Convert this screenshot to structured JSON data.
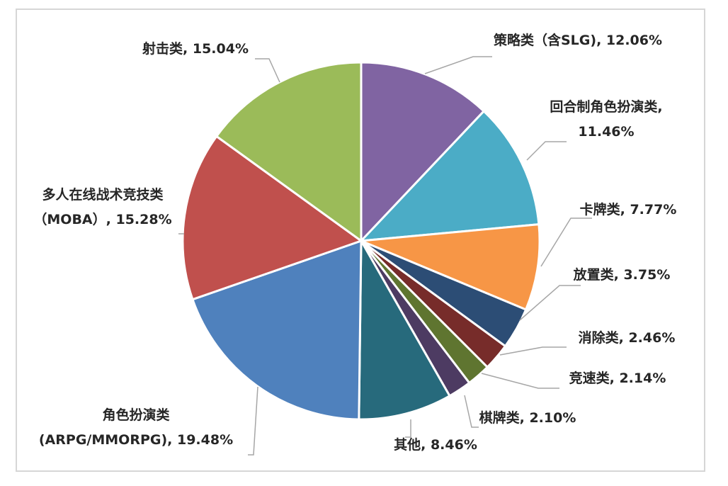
{
  "chart_data": {
    "type": "pie",
    "title": "",
    "slices": [
      {
        "label": "策略类（含SLG)",
        "value": 12.06,
        "value_label": "12.06%",
        "color": "#8064A2"
      },
      {
        "label": "回合制角色扮演类,",
        "value": 11.46,
        "value_label": "11.46%",
        "color": "#4BACC6"
      },
      {
        "label": "卡牌类",
        "value": 7.77,
        "value_label": "7.77%",
        "color": "#F79646"
      },
      {
        "label": "放置类",
        "value": 3.75,
        "value_label": "3.75%",
        "color": "#2C4D75"
      },
      {
        "label": "消除类",
        "value": 2.46,
        "value_label": "2.46%",
        "color": "#772C2A"
      },
      {
        "label": "竞速类",
        "value": 2.14,
        "value_label": "2.14%",
        "color": "#5F7530"
      },
      {
        "label": "棋牌类",
        "value": 2.1,
        "value_label": "2.10%",
        "color": "#4D3B62"
      },
      {
        "label": "其他",
        "value": 8.46,
        "value_label": "8.46%",
        "color": "#276A7C"
      },
      {
        "label": "角色扮演类 (ARPG/MMORPG)",
        "value": 19.48,
        "value_label": "19.48%",
        "color": "#4F81BD"
      },
      {
        "label": "多人在线战术竞技类（MOBA）",
        "value": 15.28,
        "value_label": "15.28%",
        "color": "#C0504D"
      },
      {
        "label": "射击类",
        "value": 15.04,
        "value_label": "15.04%",
        "color": "#9BBB59"
      }
    ],
    "label_texts": [
      [
        "策略类（含SLG), 12.06%"
      ],
      [
        "回合制角色扮演类,",
        "11.46%"
      ],
      [
        "卡牌类, 7.77%"
      ],
      [
        "放置类, 3.75%"
      ],
      [
        "消除类, 2.46%"
      ],
      [
        "竞速类, 2.14%"
      ],
      [
        "棋牌类, 2.10%"
      ],
      [
        "其他, 8.46%"
      ],
      [
        "角色扮演类",
        "(ARPG/MMORPG), 19.48%"
      ],
      [
        "多人在线战术竞技类",
        "（MOBA）, 15.28%"
      ],
      [
        "射击类, 15.04%"
      ]
    ],
    "start_angle": "12 o'clock",
    "direction": "clockwise",
    "legend": "none",
    "leader_color": "#a6a6a6"
  }
}
